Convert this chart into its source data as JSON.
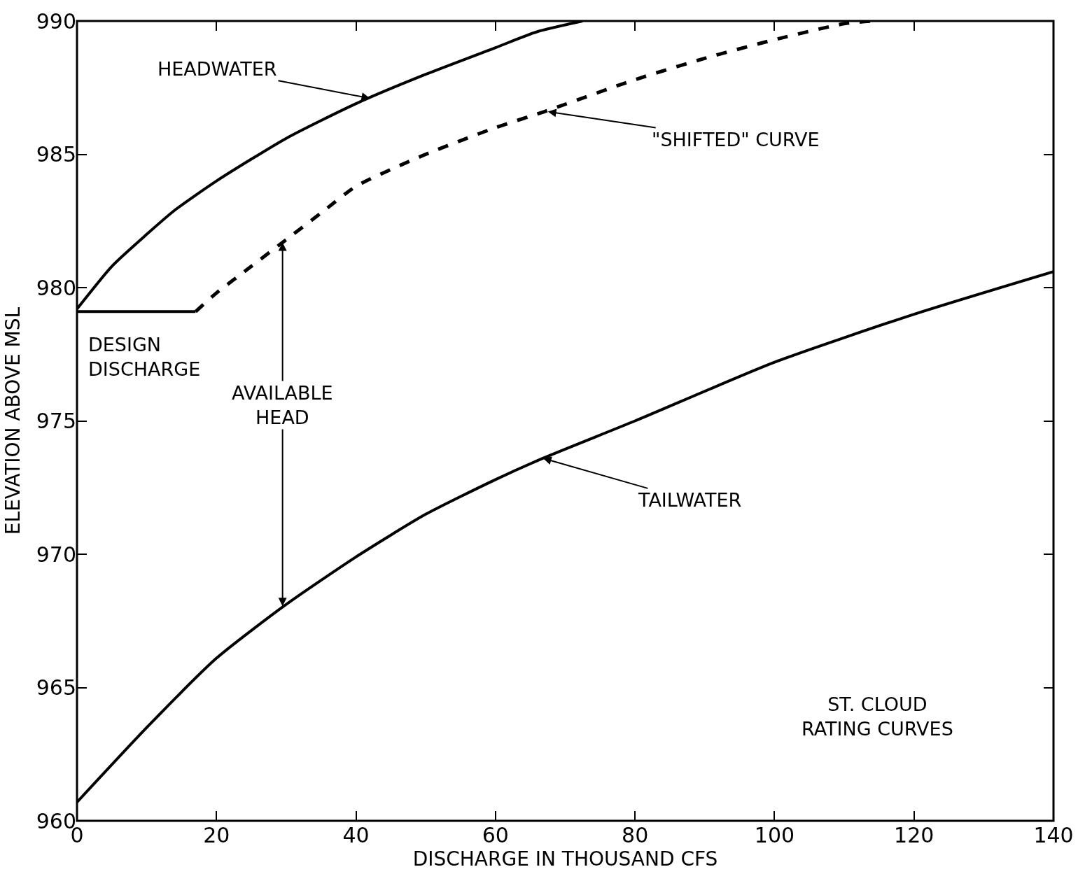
{
  "chart_data": {
    "type": "line",
    "xlabel": "DISCHARGE IN THOUSAND CFS",
    "ylabel": "ELEVATION ABOVE MSL",
    "xlim": [
      0,
      140
    ],
    "xticks": [
      0,
      20,
      40,
      60,
      80,
      100,
      120,
      140
    ],
    "ylim": [
      960,
      990
    ],
    "yticks": [
      960,
      965,
      970,
      975,
      980,
      985,
      990
    ],
    "marker": "none",
    "series": [
      {
        "color": "#000000",
        "line_style": "solid",
        "x": [
          0,
          5,
          10,
          14,
          20,
          30,
          40,
          50,
          60,
          66,
          72.5
        ],
        "values": [
          979.2,
          980.8,
          982.0,
          982.9,
          984.0,
          985.6,
          986.9,
          988.0,
          989.0,
          989.6,
          990
        ]
      },
      {
        "color": "#000000",
        "line_style": "dashed",
        "x": [
          17,
          20,
          25,
          29.5,
          35,
          40,
          50,
          60,
          67,
          80,
          90,
          100,
          110,
          114
        ],
        "values": [
          979.1,
          979.8,
          980.8,
          981.7,
          982.8,
          983.8,
          985.0,
          986.0,
          986.6,
          987.8,
          988.6,
          989.3,
          989.9,
          990
        ]
      },
      {
        "color": "#000000",
        "line_style": "solid",
        "x": [
          0,
          17
        ],
        "values": [
          979.1,
          979.1
        ]
      },
      {
        "color": "#000000",
        "line_style": "solid",
        "x": [
          0,
          10,
          20,
          29.9,
          40,
          50,
          60,
          66.8,
          80,
          100,
          120,
          140
        ],
        "values": [
          960.7,
          963.5,
          966.1,
          968.1,
          969.9,
          971.5,
          972.8,
          973.6,
          975.0,
          977.2,
          979.0,
          980.6
        ]
      }
    ],
    "annotations": [
      {
        "text": "HEADWATER",
        "x": 42,
        "y": 987.1
      },
      {
        "text": "\"SHIFTED\" CURVE",
        "x": 67.5,
        "y": 986.6
      },
      {
        "text": "TAILWATER",
        "x": 66.8,
        "y": 973.6
      },
      "DESIGN\nDISCHARGE",
      "AVAILABLE\nHEAD",
      "ST. CLOUD\nRATING CURVES"
    ]
  }
}
